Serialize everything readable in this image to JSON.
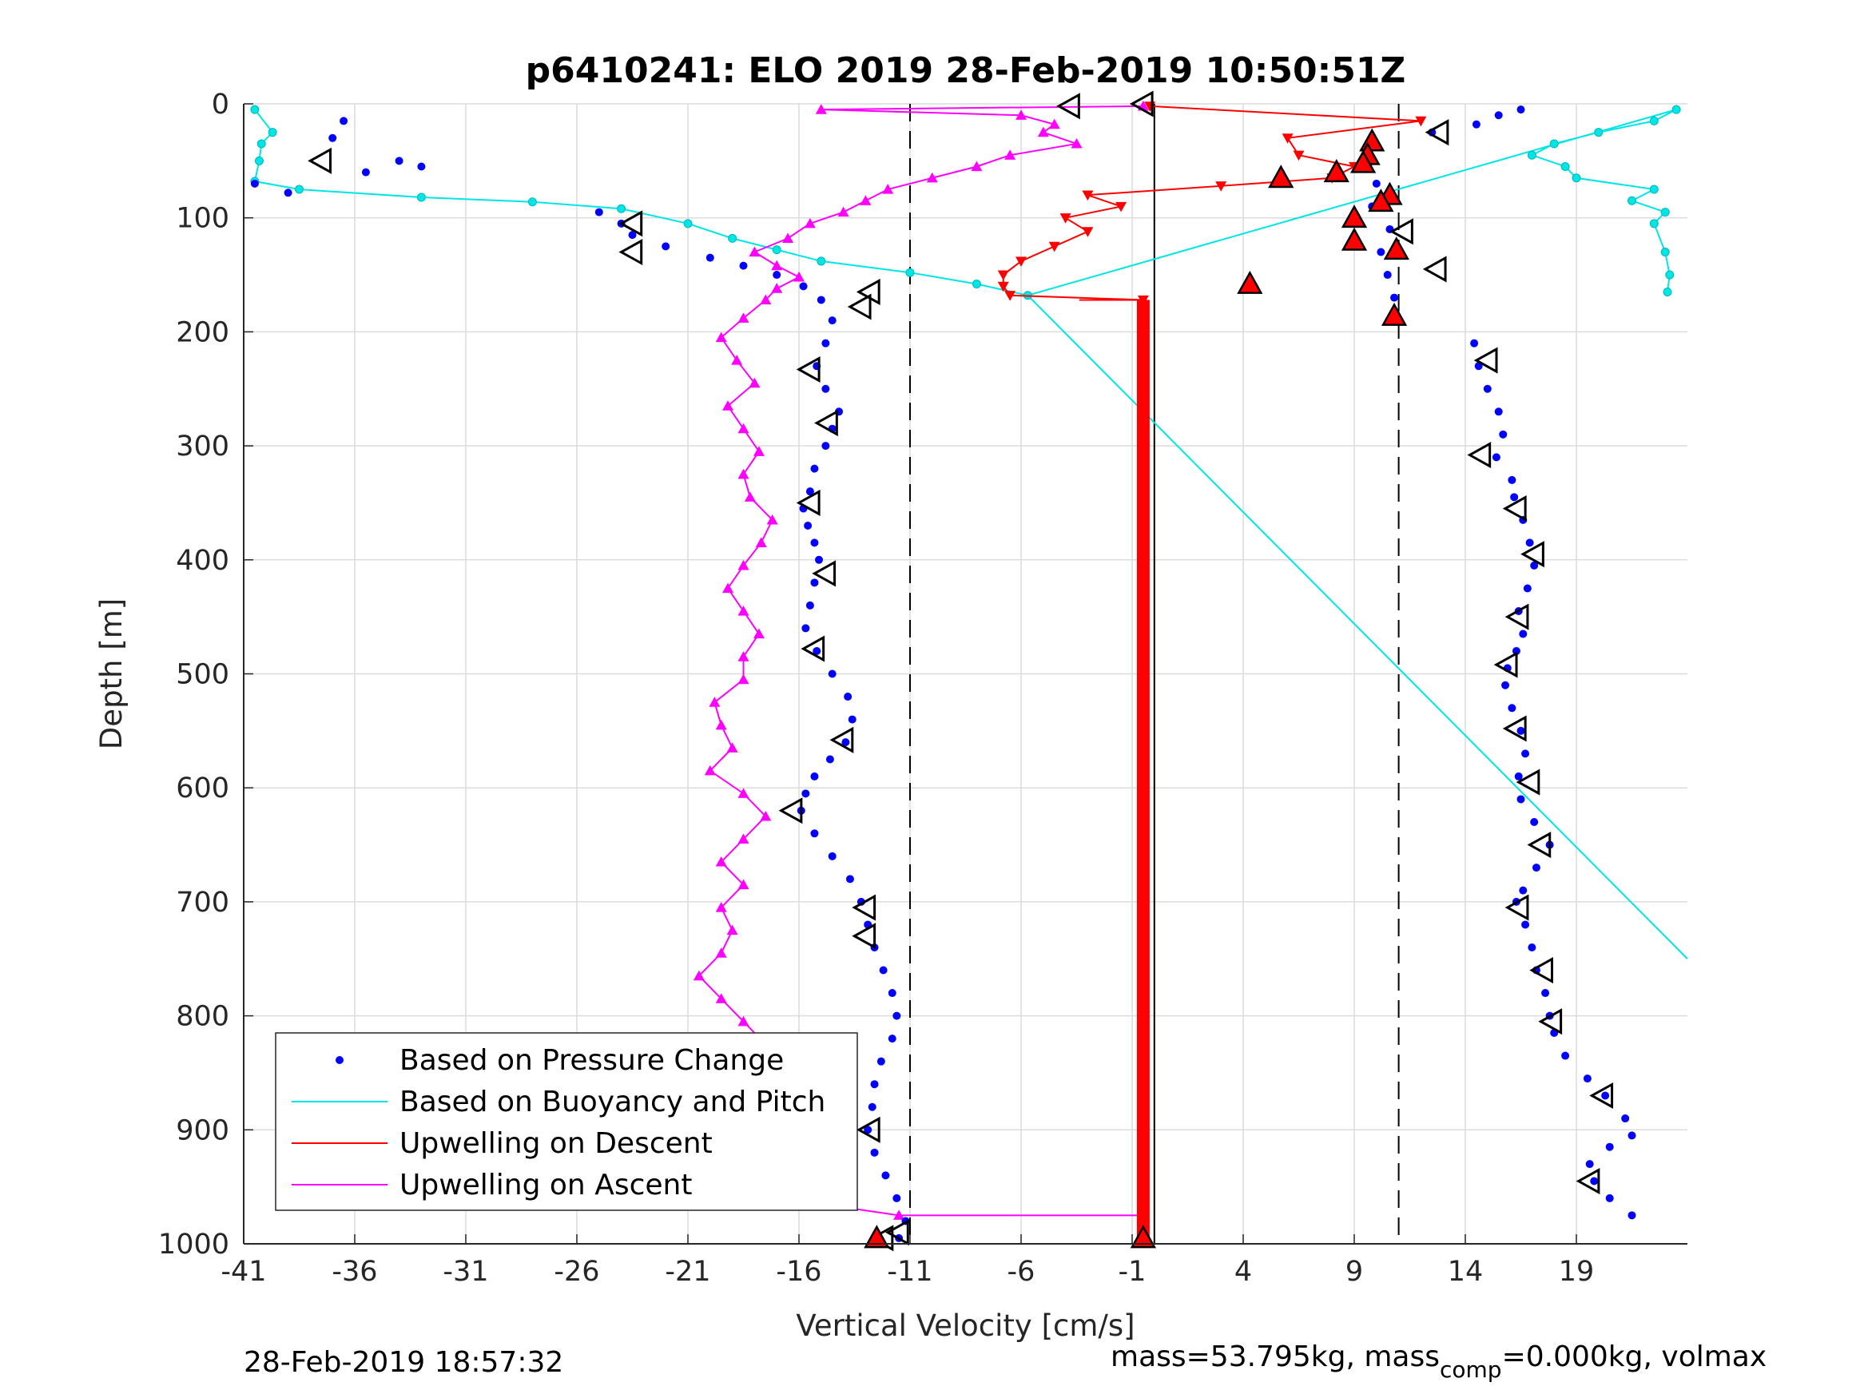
{
  "chart_data": {
    "type": "scatter",
    "title": "p6410241: ELO 2019 28-Feb-2019 10:50:51Z",
    "xlabel": "Vertical Velocity [cm/s]",
    "ylabel": "Depth [m]",
    "xlim": [
      -41,
      24
    ],
    "ylim": [
      0,
      1000
    ],
    "y_reversed": true,
    "grid": true,
    "xticks": [
      -41,
      -36,
      -31,
      -26,
      -21,
      -16,
      -11,
      -6,
      -1,
      4,
      9,
      14,
      19
    ],
    "xtick_labels": [
      "-41",
      "-36",
      "-31",
      "-26",
      "-21",
      "-16",
      "-11",
      "-6",
      "-1",
      "4",
      "9",
      "14",
      "19"
    ],
    "yticks": [
      0,
      100,
      200,
      300,
      400,
      500,
      600,
      700,
      800,
      900,
      1000
    ],
    "ytick_labels": [
      "0",
      "100",
      "200",
      "300",
      "400",
      "500",
      "600",
      "700",
      "800",
      "900",
      "1000"
    ],
    "reference_lines": [
      {
        "x": -11,
        "style": "dashed"
      },
      {
        "x": 0,
        "style": "solid"
      },
      {
        "x": 11,
        "style": "dashed"
      }
    ],
    "legend_position": "bottom-left",
    "series": [
      {
        "name": "Based on Pressure Change",
        "color": "#0000ff",
        "marker": "dot",
        "descent": [
          [
            -40.5,
            70
          ],
          [
            -39,
            78
          ],
          [
            -37,
            30
          ],
          [
            -36.5,
            15
          ],
          [
            -35.5,
            60
          ],
          [
            -34,
            50
          ],
          [
            -33,
            55
          ],
          [
            -25,
            95
          ],
          [
            -24,
            105
          ],
          [
            -23.5,
            115
          ],
          [
            -22,
            125
          ],
          [
            -20,
            135
          ],
          [
            -18.5,
            142
          ],
          [
            -17,
            150
          ],
          [
            -15.8,
            160
          ],
          [
            -15,
            172
          ],
          [
            -14.5,
            190
          ],
          [
            -14.8,
            210
          ],
          [
            -15.2,
            230
          ],
          [
            -14.8,
            250
          ],
          [
            -14.2,
            270
          ],
          [
            -14.5,
            285
          ],
          [
            -14.8,
            300
          ],
          [
            -15.3,
            320
          ],
          [
            -15.5,
            340
          ],
          [
            -15.8,
            355
          ],
          [
            -15.6,
            370
          ],
          [
            -15.3,
            385
          ],
          [
            -15.1,
            400
          ],
          [
            -15.3,
            420
          ],
          [
            -15.5,
            440
          ],
          [
            -15.7,
            460
          ],
          [
            -15.2,
            480
          ],
          [
            -14.5,
            500
          ],
          [
            -13.8,
            520
          ],
          [
            -13.6,
            540
          ],
          [
            -13.9,
            560
          ],
          [
            -14.6,
            575
          ],
          [
            -15.3,
            590
          ],
          [
            -15.7,
            605
          ],
          [
            -15.9,
            620
          ],
          [
            -15.3,
            640
          ],
          [
            -14.5,
            660
          ],
          [
            -13.7,
            680
          ],
          [
            -13.2,
            700
          ],
          [
            -12.9,
            720
          ],
          [
            -12.6,
            740
          ],
          [
            -12.2,
            760
          ],
          [
            -11.8,
            780
          ],
          [
            -11.6,
            800
          ],
          [
            -11.8,
            820
          ],
          [
            -12.3,
            840
          ],
          [
            -12.6,
            860
          ],
          [
            -12.7,
            880
          ],
          [
            -12.9,
            900
          ],
          [
            -12.6,
            920
          ],
          [
            -12.1,
            940
          ],
          [
            -11.6,
            960
          ],
          [
            -11.2,
            980
          ],
          [
            -11.5,
            995
          ]
        ],
        "ascent": [
          [
            21.5,
            975
          ],
          [
            20.5,
            960
          ],
          [
            19.8,
            945
          ],
          [
            19.6,
            930
          ],
          [
            20.5,
            915
          ],
          [
            21.5,
            905
          ],
          [
            21.2,
            890
          ],
          [
            20.3,
            870
          ],
          [
            19.5,
            855
          ],
          [
            18.5,
            835
          ],
          [
            18,
            815
          ],
          [
            17.8,
            800
          ],
          [
            17.6,
            780
          ],
          [
            17.2,
            760
          ],
          [
            17,
            740
          ],
          [
            16.7,
            720
          ],
          [
            16.3,
            700
          ],
          [
            16.6,
            690
          ],
          [
            17.2,
            670
          ],
          [
            17.8,
            650
          ],
          [
            17.1,
            630
          ],
          [
            16.5,
            610
          ],
          [
            16.4,
            590
          ],
          [
            16.7,
            570
          ],
          [
            16.5,
            550
          ],
          [
            16.1,
            530
          ],
          [
            15.8,
            510
          ],
          [
            15.9,
            495
          ],
          [
            16.3,
            480
          ],
          [
            16.6,
            465
          ],
          [
            16.4,
            445
          ],
          [
            16.8,
            425
          ],
          [
            17.1,
            405
          ],
          [
            16.9,
            385
          ],
          [
            16.6,
            365
          ],
          [
            16.2,
            345
          ],
          [
            16.1,
            330
          ],
          [
            15.4,
            310
          ],
          [
            15.7,
            290
          ],
          [
            15.5,
            270
          ],
          [
            15.0,
            250
          ],
          [
            14.6,
            230
          ],
          [
            14.4,
            210
          ],
          [
            11.0,
            190
          ],
          [
            10.8,
            170
          ],
          [
            10.5,
            150
          ],
          [
            10.2,
            130
          ],
          [
            10.6,
            110
          ],
          [
            9.8,
            90
          ],
          [
            10.0,
            70
          ],
          [
            9.7,
            50
          ],
          [
            9.9,
            35
          ],
          [
            12.5,
            25
          ],
          [
            14.5,
            18
          ],
          [
            15.5,
            10
          ],
          [
            16.5,
            5
          ]
        ]
      },
      {
        "name": "Based on Buoyancy and Pitch",
        "color": "#00e5e5",
        "marker": "circle",
        "points": [
          [
            -40.5,
            5
          ],
          [
            -39.7,
            25
          ],
          [
            -40.2,
            35
          ],
          [
            -40.3,
            50
          ],
          [
            -40.5,
            68
          ],
          [
            -38.5,
            75
          ],
          [
            -33,
            82
          ],
          [
            -28,
            86
          ],
          [
            -24,
            92
          ],
          [
            -21,
            105
          ],
          [
            -19,
            118
          ],
          [
            -17,
            128
          ],
          [
            -15,
            138
          ],
          [
            -11,
            148
          ],
          [
            -8,
            158
          ],
          [
            -5.7,
            168
          ],
          [
            23.5,
            5
          ],
          [
            22.5,
            15
          ],
          [
            20,
            25
          ],
          [
            18,
            35
          ],
          [
            17,
            45
          ],
          [
            18.5,
            55
          ],
          [
            19,
            65
          ],
          [
            22.5,
            75
          ],
          [
            21.5,
            85
          ],
          [
            23,
            95
          ],
          [
            22.5,
            105
          ],
          [
            23,
            130
          ],
          [
            23.2,
            150
          ],
          [
            23.1,
            165
          ]
        ],
        "trend_line": [
          [
            -5.7,
            168
          ],
          [
            24,
            750
          ]
        ]
      },
      {
        "name": "Upwelling on Descent",
        "color": "#ff0000",
        "marker": "triangle-down",
        "points": [
          [
            -0.2,
            2
          ],
          [
            12,
            15
          ],
          [
            6,
            30
          ],
          [
            6.5,
            45
          ],
          [
            9,
            55
          ],
          [
            8,
            65
          ],
          [
            3,
            72
          ],
          [
            -3,
            80
          ],
          [
            -1.5,
            90
          ],
          [
            -4,
            100
          ],
          [
            -3,
            112
          ],
          [
            -4.5,
            125
          ],
          [
            -6,
            138
          ],
          [
            -6.8,
            150
          ],
          [
            -6.8,
            160
          ],
          [
            -6.5,
            168
          ],
          [
            -0.5,
            172
          ]
        ],
        "vertical_bar": {
          "x": -0.5,
          "from": 172,
          "to": 995
        }
      },
      {
        "name": "Upwelling on Ascent",
        "color": "#ff00ff",
        "marker": "triangle-up",
        "points": [
          [
            -0.5,
            2
          ],
          [
            -15,
            5
          ],
          [
            -6,
            10
          ],
          [
            -4.5,
            18
          ],
          [
            -5,
            25
          ],
          [
            -3.5,
            35
          ],
          [
            -6.5,
            45
          ],
          [
            -8,
            55
          ],
          [
            -10,
            65
          ],
          [
            -12,
            75
          ],
          [
            -13,
            85
          ],
          [
            -14,
            95
          ],
          [
            -15.5,
            105
          ],
          [
            -16.5,
            118
          ],
          [
            -18,
            130
          ],
          [
            -17,
            142
          ],
          [
            -16,
            152
          ],
          [
            -17,
            162
          ],
          [
            -17.5,
            172
          ],
          [
            -18.5,
            188
          ],
          [
            -19.5,
            205
          ],
          [
            -18.8,
            225
          ],
          [
            -18,
            245
          ],
          [
            -19.2,
            265
          ],
          [
            -18.5,
            285
          ],
          [
            -17.8,
            305
          ],
          [
            -18.5,
            325
          ],
          [
            -18.2,
            345
          ],
          [
            -17.2,
            365
          ],
          [
            -17.7,
            385
          ],
          [
            -18.5,
            405
          ],
          [
            -19.2,
            425
          ],
          [
            -18.5,
            445
          ],
          [
            -17.8,
            465
          ],
          [
            -18.5,
            485
          ],
          [
            -18.5,
            505
          ],
          [
            -19.8,
            525
          ],
          [
            -19.5,
            545
          ],
          [
            -19.0,
            565
          ],
          [
            -20.0,
            585
          ],
          [
            -18.5,
            605
          ],
          [
            -17.5,
            625
          ],
          [
            -18.5,
            645
          ],
          [
            -19.5,
            665
          ],
          [
            -18.5,
            685
          ],
          [
            -19.5,
            705
          ],
          [
            -19.0,
            725
          ],
          [
            -19.5,
            745
          ],
          [
            -20.5,
            765
          ],
          [
            -19.5,
            785
          ],
          [
            -18.5,
            805
          ],
          [
            -17.5,
            825
          ],
          [
            -17.0,
            845
          ],
          [
            -17.5,
            865
          ],
          [
            -18.5,
            885
          ],
          [
            -17.5,
            905
          ],
          [
            -16.5,
            925
          ],
          [
            -15.5,
            945
          ],
          [
            -15.0,
            965
          ],
          [
            -11.5,
            975
          ],
          [
            -0.5,
            975
          ]
        ]
      }
    ],
    "black_triangles": [
      [
        -37.5,
        50
      ],
      [
        -3.8,
        2
      ],
      [
        -0.5,
        0
      ],
      [
        12.8,
        25
      ],
      [
        -23.5,
        105
      ],
      [
        -23.5,
        130
      ],
      [
        -12.8,
        165
      ],
      [
        -13.2,
        178
      ],
      [
        11.2,
        112
      ],
      [
        12.7,
        145
      ],
      [
        -15.5,
        233
      ],
      [
        -14.7,
        280
      ],
      [
        15.0,
        225
      ],
      [
        14.7,
        308
      ],
      [
        -15.5,
        350
      ],
      [
        -14.8,
        412
      ],
      [
        16.3,
        355
      ],
      [
        17.1,
        395
      ],
      [
        -15.3,
        478
      ],
      [
        -14.0,
        558
      ],
      [
        16.4,
        450
      ],
      [
        15.9,
        492
      ],
      [
        -16.3,
        620
      ],
      [
        -13.0,
        705
      ],
      [
        -13.0,
        730
      ],
      [
        16.3,
        548
      ],
      [
        16.9,
        595
      ],
      [
        17.4,
        650
      ],
      [
        16.4,
        705
      ],
      [
        17.5,
        760
      ],
      [
        17.9,
        805
      ],
      [
        -12.8,
        900
      ],
      [
        20.2,
        870
      ],
      [
        19.6,
        945
      ],
      [
        -11.5,
        990
      ],
      [
        -12.2,
        995
      ]
    ],
    "red_triangles": [
      [
        9.8,
        33
      ],
      [
        9.6,
        45
      ],
      [
        9.4,
        52
      ],
      [
        5.7,
        65
      ],
      [
        8.2,
        60
      ],
      [
        10.6,
        80
      ],
      [
        10.2,
        86
      ],
      [
        9.0,
        100
      ],
      [
        9.0,
        120
      ],
      [
        10.9,
        128
      ],
      [
        4.3,
        158
      ],
      [
        10.8,
        186
      ],
      [
        -12.5,
        995
      ],
      [
        -0.5,
        995
      ]
    ]
  },
  "legend": {
    "items": [
      {
        "label": "Based on Pressure Change",
        "color": "#0000ff"
      },
      {
        "label": "Based on Buoyancy and Pitch",
        "color": "#00e5e5"
      },
      {
        "label": "Upwelling on Descent",
        "color": "#ff0000"
      },
      {
        "label": "Upwelling on Ascent",
        "color": "#ff00ff"
      }
    ]
  },
  "footer": {
    "timestamp": "28-Feb-2019 18:57:32",
    "mass_main": "mass=53.795kg, mass",
    "mass_sub": "comp",
    "mass_rest": "=0.000kg, volmax"
  }
}
